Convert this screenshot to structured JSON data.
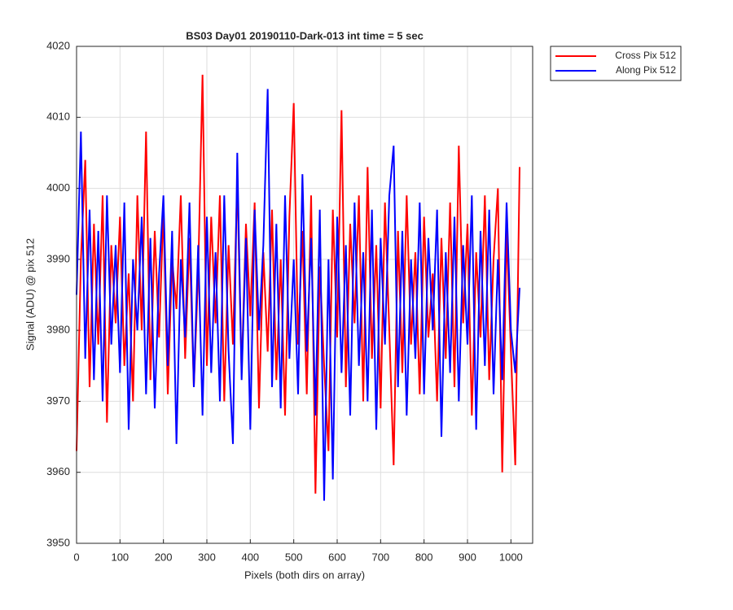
{
  "chart_data": {
    "type": "line",
    "title": "BS03 Day01 20190110-Dark-013 int time = 5 sec",
    "x_label": "Pixels (both dirs on array)",
    "y_label": "Signal (ADU) @ pix 512",
    "x": [
      0,
      10,
      20,
      30,
      40,
      50,
      60,
      70,
      80,
      90,
      100,
      110,
      120,
      130,
      140,
      150,
      160,
      170,
      180,
      190,
      200,
      210,
      220,
      230,
      240,
      250,
      260,
      270,
      280,
      290,
      300,
      310,
      320,
      330,
      340,
      350,
      360,
      370,
      380,
      390,
      400,
      410,
      420,
      430,
      440,
      450,
      460,
      470,
      480,
      490,
      500,
      510,
      520,
      530,
      540,
      550,
      560,
      570,
      580,
      590,
      600,
      610,
      620,
      630,
      640,
      650,
      660,
      670,
      680,
      690,
      700,
      710,
      720,
      730,
      740,
      750,
      760,
      770,
      780,
      790,
      800,
      810,
      820,
      830,
      840,
      850,
      860,
      870,
      880,
      890,
      900,
      910,
      920,
      930,
      940,
      950,
      960,
      970,
      980,
      990,
      1000,
      1010,
      1020
    ],
    "series": [
      {
        "name": "Cross Pix 512",
        "color": "#ff0000",
        "values": [
          3963,
          3990,
          4004,
          3972,
          3995,
          3978,
          3999,
          3967,
          3992,
          3981,
          3996,
          3975,
          3988,
          3970,
          3999,
          3980,
          4008,
          3973,
          3994,
          3979,
          3997,
          3971,
          3990,
          3983,
          3999,
          3976,
          3993,
          3972,
          3988,
          4016,
          3975,
          3996,
          3981,
          3999,
          3970,
          3992,
          3978,
          4001,
          3974,
          3995,
          3982,
          3998,
          3969,
          3991,
          3977,
          3997,
          3973,
          3990,
          3968,
          3996,
          4012,
          3978,
          3994,
          3971,
          3999,
          3957,
          3989,
          3975,
          3963,
          3997,
          3979,
          4011,
          3972,
          3995,
          3981,
          3999,
          3970,
          4003,
          3976,
          3992,
          3969,
          3998,
          3980,
          3961,
          3994,
          3974,
          3999,
          3978,
          3991,
          3971,
          3996,
          3979,
          3988,
          3970,
          3993,
          3976,
          3998,
          3972,
          4006,
          3981,
          3995,
          3968,
          3991,
          3979,
          3999,
          3973,
          3990,
          4000,
          3960,
          3994,
          3977,
          3961,
          4003
        ]
      },
      {
        "name": "Along Pix 512",
        "color": "#0000ff",
        "values": [
          3985,
          4008,
          3976,
          3997,
          3973,
          3994,
          3970,
          3999,
          3978,
          3992,
          3974,
          3998,
          3966,
          3990,
          3980,
          3996,
          3971,
          3993,
          3969,
          3988,
          3999,
          3975,
          3994,
          3964,
          3990,
          3979,
          3998,
          3972,
          3992,
          3968,
          3996,
          3974,
          3991,
          3970,
          3999,
          3977,
          3964,
          4005,
          3973,
          3993,
          3966,
          3997,
          3980,
          3992,
          4014,
          3972,
          3995,
          3969,
          3999,
          3976,
          3990,
          3971,
          4002,
          3977,
          3993,
          3968,
          3997,
          3956,
          3990,
          3959,
          3996,
          3974,
          3992,
          3968,
          3998,
          3975,
          3991,
          3970,
          3997,
          3966,
          3993,
          3978,
          3999,
          4006,
          3972,
          3994,
          3968,
          3990,
          3976,
          3998,
          3971,
          3993,
          3980,
          3997,
          3965,
          3991,
          3974,
          3996,
          3970,
          3992,
          3978,
          3999,
          3966,
          3994,
          3975,
          3997,
          3971,
          3990,
          3973,
          3998,
          3980,
          3974,
          3986
        ]
      }
    ],
    "xlim": [
      0,
      1050
    ],
    "xticks": [
      0,
      100,
      200,
      300,
      400,
      500,
      600,
      700,
      800,
      900,
      1000
    ],
    "ylim": [
      3950,
      4020
    ],
    "yticks": [
      3950,
      3960,
      3970,
      3980,
      3990,
      4000,
      4010,
      4020
    ],
    "grid": true,
    "legend": "outside-top-right"
  }
}
